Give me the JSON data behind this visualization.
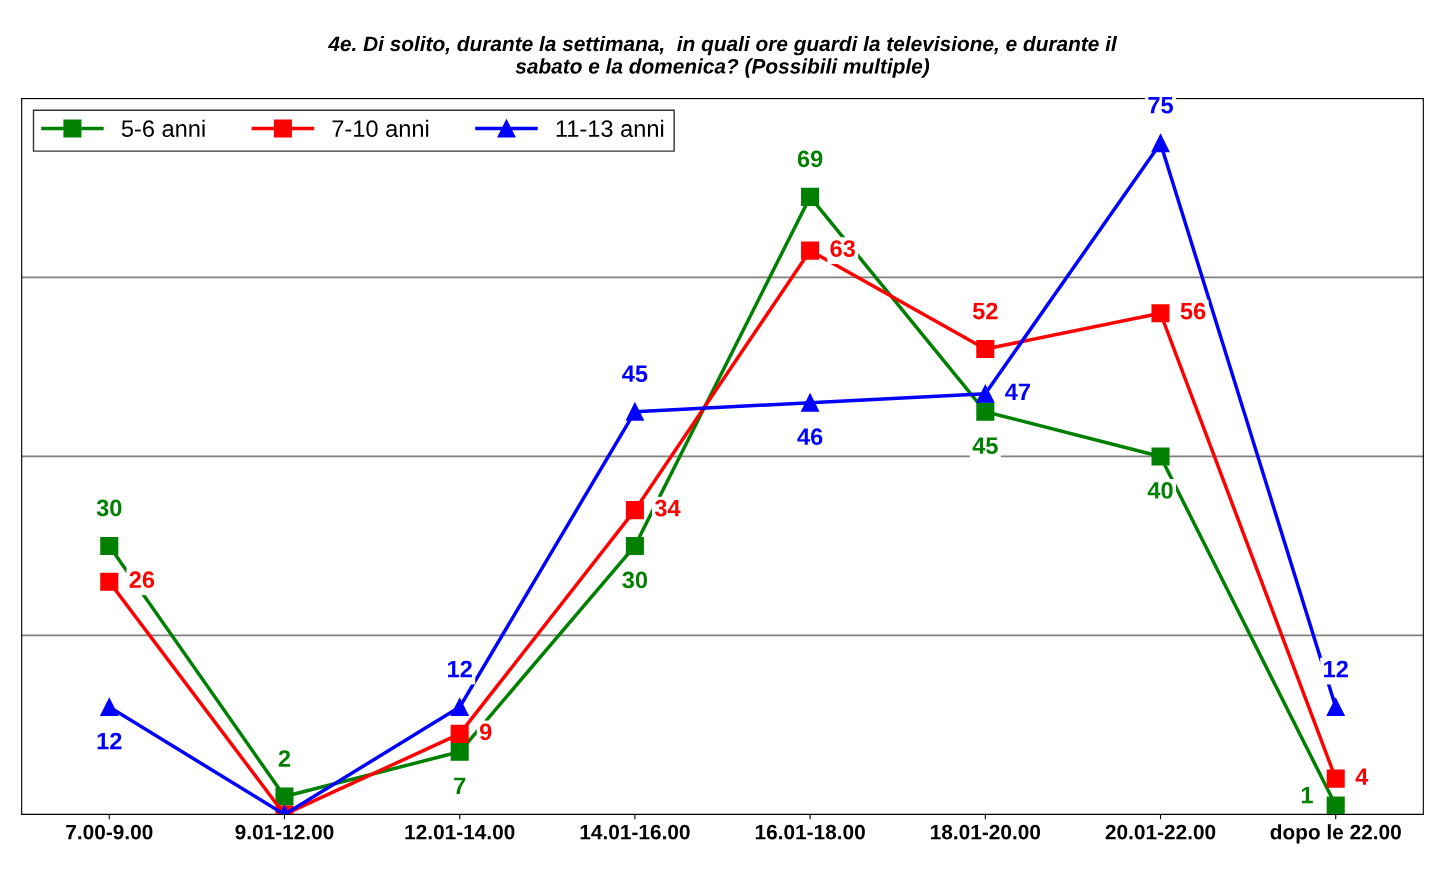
{
  "chart_data": {
    "type": "line",
    "title": "4e. Di solito, durante la settimana,  in quali ore guardi la televisione, e durante il\nsabato e la domenica? (Possibili multiple)",
    "categories": [
      "7.00-9.00",
      "9.01-12.00",
      "12.01-14.00",
      "14.01-16.00",
      "16.01-18.00",
      "18.01-20.00",
      "20.01-22.00",
      "dopo le 22.00"
    ],
    "series": [
      {
        "name": "5-6 anni",
        "color": "#008000",
        "marker": "square",
        "values": [
          30,
          2,
          7,
          30,
          69,
          45,
          40,
          1
        ],
        "value_labels": [
          "30",
          "2",
          "7",
          "30",
          "69",
          "45",
          "40",
          "1"
        ]
      },
      {
        "name": "7-10 anni",
        "color": "#ff0000",
        "marker": "square",
        "values": [
          26,
          0,
          9,
          34,
          63,
          52,
          56,
          4
        ],
        "value_labels": [
          "26",
          null,
          "9",
          "34",
          "63",
          "52",
          "56",
          "4"
        ]
      },
      {
        "name": "11-13 anni",
        "color": "#0000ff",
        "marker": "triangle",
        "values": [
          12,
          0,
          12,
          45,
          46,
          47,
          75,
          12
        ],
        "value_labels": [
          "12",
          null,
          "12",
          "45",
          "46",
          "47",
          "75",
          "12"
        ]
      }
    ],
    "ylim": [
      0,
      80
    ],
    "yticks": [
      {
        "value": 0,
        "label": null
      },
      {
        "value": 20,
        "label": null
      },
      {
        "value": 40,
        "label": null
      },
      {
        "value": 60,
        "label": null
      },
      {
        "value": 80,
        "label": null
      }
    ],
    "grid": "y",
    "legend": "top left",
    "line_style": "solid"
  }
}
